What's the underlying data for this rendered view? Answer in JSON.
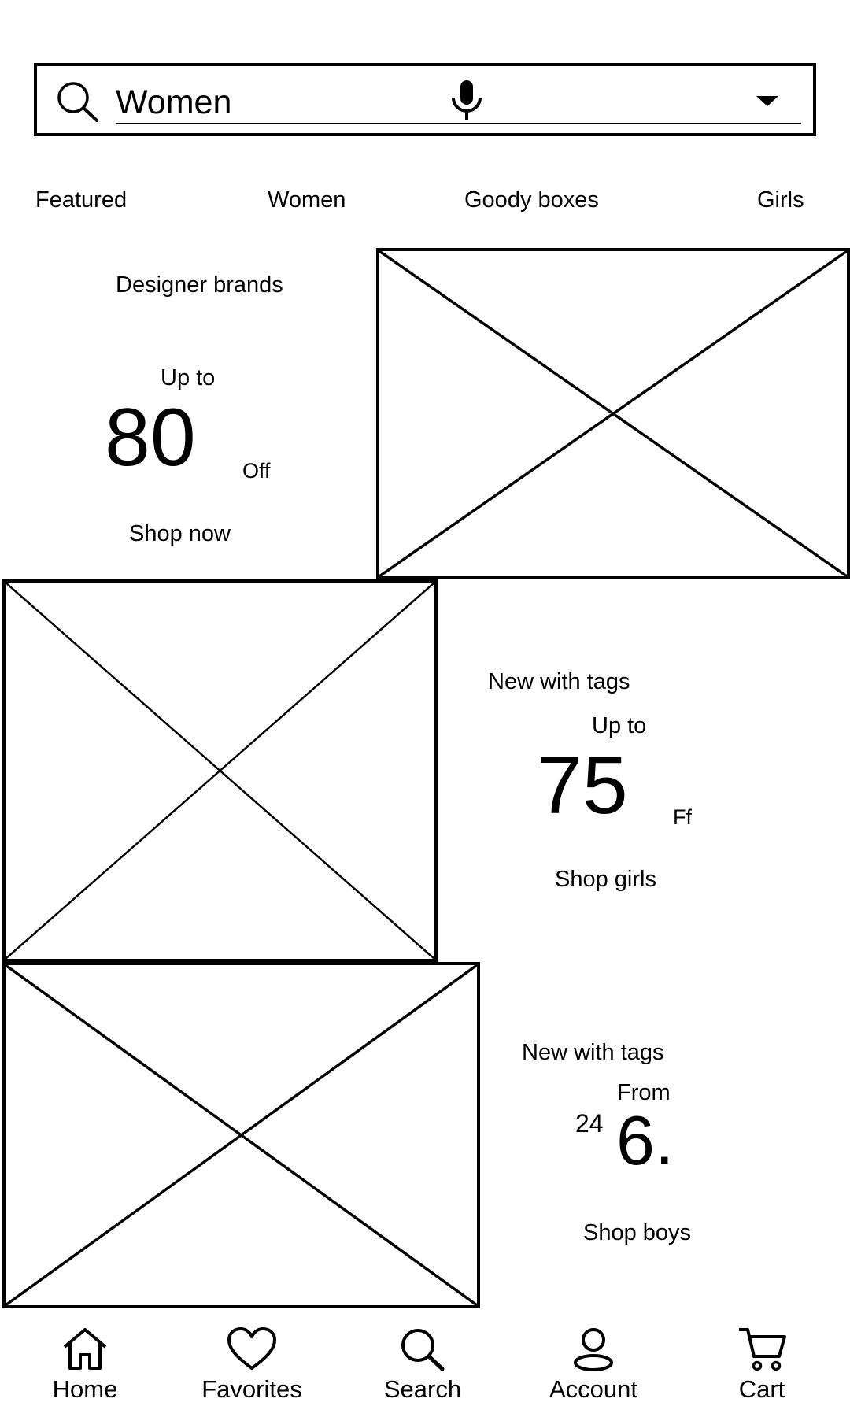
{
  "search": {
    "query": "Women",
    "icon": "search-icon",
    "mic_icon": "microphone-icon",
    "dropdown_icon": "caret-down-icon"
  },
  "tabs": [
    {
      "label": "Featured"
    },
    {
      "label": "Women"
    },
    {
      "label": "Goody boxes"
    },
    {
      "label": "Girls"
    }
  ],
  "promos": [
    {
      "title": "Designer brands",
      "prefix": "Up to",
      "value": "80",
      "suffix": "Off",
      "cta": "Shop now"
    },
    {
      "title": "New with tags",
      "prefix": "Up to",
      "value": "75",
      "suffix": "Ff",
      "cta": "Shop girls"
    },
    {
      "title": "New with tags",
      "prefix": "From",
      "small_value": "24",
      "value": "6.",
      "cta": "Shop boys"
    }
  ],
  "bottom_nav": [
    {
      "label": "Home",
      "icon": "home-icon"
    },
    {
      "label": "Favorites",
      "icon": "heart-icon"
    },
    {
      "label": "Search",
      "icon": "search-icon"
    },
    {
      "label": "Account",
      "icon": "account-icon"
    },
    {
      "label": "Cart",
      "icon": "cart-icon"
    }
  ]
}
